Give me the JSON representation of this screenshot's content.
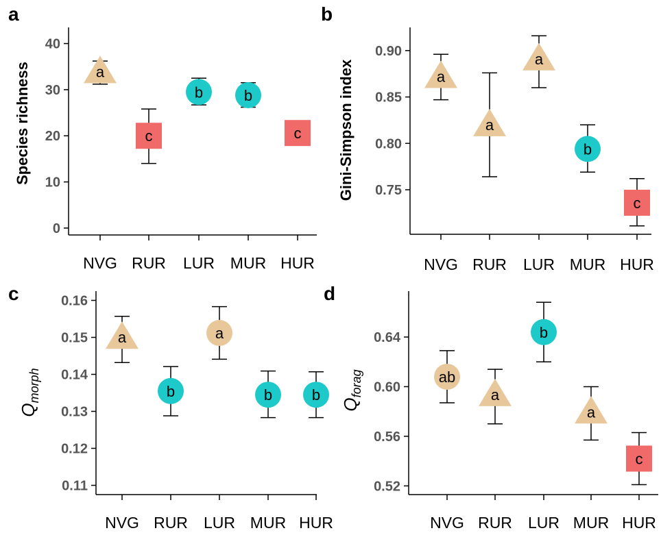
{
  "colors": {
    "triangle": "#e8c89a",
    "circle_tan": "#e8c89a",
    "circle_cyan": "#1ec9c9",
    "square": "#f06a6a"
  },
  "chart_data": [
    {
      "panel": "a",
      "type": "scatter",
      "ylabel": "Species richness",
      "ylabel_sub": "",
      "categories": [
        "NVG",
        "RUR",
        "LUR",
        "MUR",
        "HUR"
      ],
      "yticks": [
        "0",
        "10",
        "20",
        "30",
        "40"
      ],
      "tickvals": [
        0,
        10,
        20,
        30,
        40
      ],
      "ylim": [
        -1.5,
        43.5
      ],
      "points": [
        {
          "category": "NVG",
          "value": 33.5,
          "lower": 31.2,
          "upper": 36.2,
          "letter": "a",
          "shape": "triangle",
          "color": "tan"
        },
        {
          "category": "RUR",
          "value": 20.0,
          "lower": 14.0,
          "upper": 25.8,
          "letter": "c",
          "shape": "square",
          "color": "red"
        },
        {
          "category": "LUR",
          "value": 29.5,
          "lower": 26.7,
          "upper": 32.5,
          "letter": "b",
          "shape": "circle",
          "color": "cyan"
        },
        {
          "category": "MUR",
          "value": 28.8,
          "lower": 26.2,
          "upper": 31.5,
          "letter": "b",
          "shape": "circle",
          "color": "cyan"
        },
        {
          "category": "HUR",
          "value": 20.6,
          "lower": 18.4,
          "upper": 23.2,
          "letter": "c",
          "shape": "square",
          "color": "red"
        }
      ]
    },
    {
      "panel": "b",
      "type": "scatter",
      "ylabel": "Gini-Simpson index",
      "ylabel_sub": "",
      "categories": [
        "NVG",
        "RUR",
        "LUR",
        "MUR",
        "HUR"
      ],
      "yticks": [
        "0.75",
        "0.80",
        "0.85",
        "0.90"
      ],
      "tickvals": [
        0.75,
        0.8,
        0.85,
        0.9
      ],
      "ylim": [
        0.702,
        0.925
      ],
      "points": [
        {
          "category": "NVG",
          "value": 0.87,
          "lower": 0.847,
          "upper": 0.896,
          "letter": "a",
          "shape": "triangle",
          "color": "tan"
        },
        {
          "category": "RUR",
          "value": 0.818,
          "lower": 0.764,
          "upper": 0.876,
          "letter": "a",
          "shape": "triangle",
          "color": "tan"
        },
        {
          "category": "LUR",
          "value": 0.889,
          "lower": 0.86,
          "upper": 0.916,
          "letter": "a",
          "shape": "triangle",
          "color": "tan"
        },
        {
          "category": "MUR",
          "value": 0.794,
          "lower": 0.769,
          "upper": 0.82,
          "letter": "b",
          "shape": "circle",
          "color": "cyan"
        },
        {
          "category": "HUR",
          "value": 0.736,
          "lower": 0.711,
          "upper": 0.762,
          "letter": "c",
          "shape": "square",
          "color": "red"
        }
      ]
    },
    {
      "panel": "c",
      "type": "scatter",
      "ylabel": "Q",
      "ylabel_sub": "morph",
      "categories": [
        "NVG",
        "RUR",
        "LUR",
        "MUR",
        "HUR"
      ],
      "yticks": [
        "0.11",
        "0.12",
        "0.13",
        "0.14",
        "0.15",
        "0.16"
      ],
      "tickvals": [
        0.11,
        0.12,
        0.13,
        0.14,
        0.15,
        0.16
      ],
      "ylim": [
        0.1075,
        0.1625
      ],
      "points": [
        {
          "category": "NVG",
          "value": 0.1495,
          "lower": 0.1432,
          "upper": 0.1557,
          "letter": "a",
          "shape": "triangle",
          "color": "tan"
        },
        {
          "category": "RUR",
          "value": 0.1355,
          "lower": 0.1288,
          "upper": 0.1421,
          "letter": "b",
          "shape": "circle",
          "color": "cyan"
        },
        {
          "category": "LUR",
          "value": 0.1512,
          "lower": 0.1441,
          "upper": 0.1583,
          "letter": "a",
          "shape": "circle",
          "color": "tan"
        },
        {
          "category": "MUR",
          "value": 0.1345,
          "lower": 0.1283,
          "upper": 0.1409,
          "letter": "b",
          "shape": "circle",
          "color": "cyan"
        },
        {
          "category": "HUR",
          "value": 0.1345,
          "lower": 0.1283,
          "upper": 0.1407,
          "letter": "b",
          "shape": "circle",
          "color": "cyan"
        }
      ]
    },
    {
      "panel": "d",
      "type": "scatter",
      "ylabel": "Q",
      "ylabel_sub": "forag",
      "categories": [
        "NVG",
        "RUR",
        "LUR",
        "MUR",
        "HUR"
      ],
      "yticks": [
        "0.52",
        "0.56",
        "0.60",
        "0.64"
      ],
      "tickvals": [
        0.52,
        0.56,
        0.6,
        0.64
      ],
      "ylim": [
        0.513,
        0.677
      ],
      "points": [
        {
          "category": "NVG",
          "value": 0.608,
          "lower": 0.587,
          "upper": 0.629,
          "letter": "ab",
          "shape": "circle",
          "color": "tan"
        },
        {
          "category": "RUR",
          "value": 0.592,
          "lower": 0.57,
          "upper": 0.614,
          "letter": "a",
          "shape": "triangle",
          "color": "tan"
        },
        {
          "category": "LUR",
          "value": 0.644,
          "lower": 0.62,
          "upper": 0.668,
          "letter": "b",
          "shape": "circle",
          "color": "cyan"
        },
        {
          "category": "MUR",
          "value": 0.578,
          "lower": 0.557,
          "upper": 0.6,
          "letter": "a",
          "shape": "triangle",
          "color": "tan"
        },
        {
          "category": "HUR",
          "value": 0.542,
          "lower": 0.521,
          "upper": 0.563,
          "letter": "c",
          "shape": "square",
          "color": "red"
        }
      ]
    }
  ]
}
